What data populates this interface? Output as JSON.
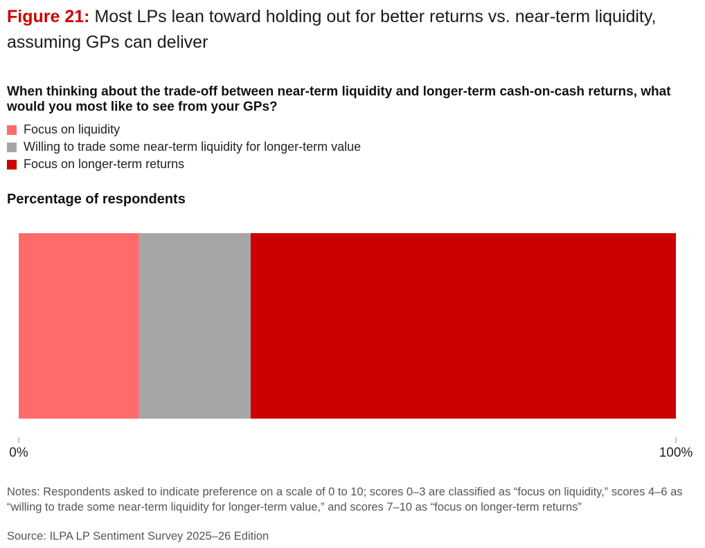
{
  "figure": {
    "label": "Figure 21:",
    "title": "Most LPs lean toward holding out for better returns vs. near-term liquidity, assuming GPs can deliver"
  },
  "question": "When thinking about the trade-off between near-term liquidity and longer-term cash-on-cash returns, what would you most like to see from your GPs?",
  "subtitle": "Percentage of respondents",
  "notes": "Notes: Respondents asked to indicate preference on a scale of 0 to 10; scores 0–3 are classified as “focus on liquidity,” scores 4–6 as “willing to trade some near-term liquidity for longer-term value,” and scores 7–10 as “focus on longer-term returns”",
  "source": "Source: ILPA LP Sentiment Survey 2025–26 Edition",
  "chart_data": {
    "type": "bar",
    "orientation": "horizontal-stacked-100",
    "xlim": [
      0,
      100
    ],
    "tick_labels": [
      "0%",
      "100%"
    ],
    "grid": false,
    "legend_placement": "top-left",
    "series": [
      {
        "name": "Focus on liquidity",
        "value": 18.3,
        "color": "#ff6b6b"
      },
      {
        "name": "Willing to trade some near-term liquidity for longer-term value",
        "value": 17.0,
        "color": "#a6a6a6"
      },
      {
        "name": "Focus on longer-term returns",
        "value": 64.7,
        "color": "#cc0000"
      }
    ]
  }
}
